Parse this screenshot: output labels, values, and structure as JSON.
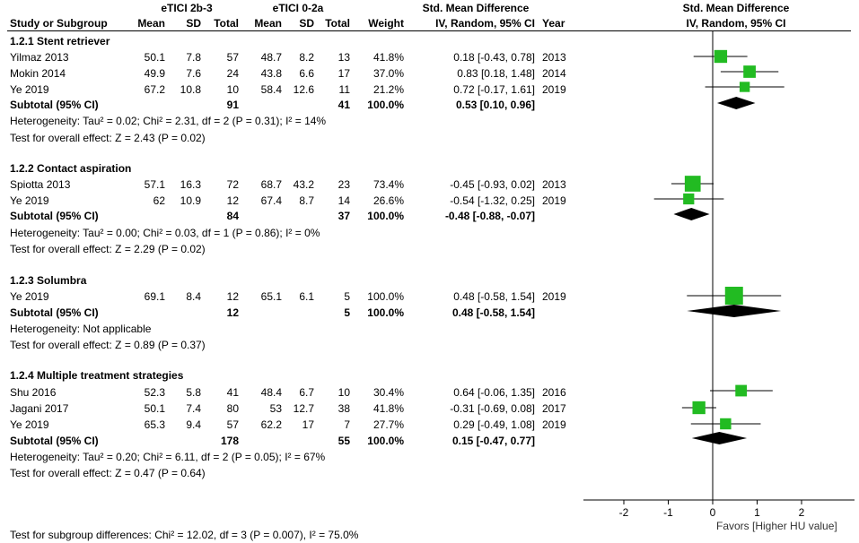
{
  "header": {
    "group1": "eTICI 2b-3",
    "group2": "eTICI 0-2a",
    "effect_title": "Std. Mean Difference",
    "plot_title": "Std. Mean Difference",
    "cols": {
      "study": "Study or Subgroup",
      "mean1": "Mean",
      "sd1": "SD",
      "total1": "Total",
      "mean2": "Mean",
      "sd2": "SD",
      "total2": "Total",
      "weight": "Weight",
      "ci": "IV, Random, 95% CI",
      "year": "Year",
      "plot_ci": "IV, Random, 95% CI"
    }
  },
  "groups": [
    {
      "title": "1.2.1 Stent retriever",
      "studies": [
        {
          "name": "Yilmaz 2013",
          "mean1": "50.1",
          "sd1": "7.8",
          "n1": "57",
          "mean2": "48.7",
          "sd2": "8.2",
          "n2": "13",
          "weight": "41.8%",
          "ci": "0.18 [-0.43, 0.78]",
          "year": "2013"
        },
        {
          "name": "Mokin 2014",
          "mean1": "49.9",
          "sd1": "7.6",
          "n1": "24",
          "mean2": "43.8",
          "sd2": "6.6",
          "n2": "17",
          "weight": "37.0%",
          "ci": "0.83 [0.18, 1.48]",
          "year": "2014"
        },
        {
          "name": "Ye 2019",
          "mean1": "67.2",
          "sd1": "10.8",
          "n1": "10",
          "mean2": "58.4",
          "sd2": "12.6",
          "n2": "11",
          "weight": "21.2%",
          "ci": "0.72 [-0.17, 1.61]",
          "year": "2019"
        }
      ],
      "subtotal": {
        "label": "Subtotal (95% CI)",
        "n1": "91",
        "n2": "41",
        "weight": "100.0%",
        "ci": "0.53 [0.10, 0.96]"
      },
      "heterogeneity": "Heterogeneity: Tau² = 0.02; Chi² = 2.31, df = 2 (P = 0.31); I² = 14%",
      "overall": "Test for overall effect: Z = 2.43 (P = 0.02)"
    },
    {
      "title": "1.2.2 Contact aspiration",
      "studies": [
        {
          "name": "Spiotta 2013",
          "mean1": "57.1",
          "sd1": "16.3",
          "n1": "72",
          "mean2": "68.7",
          "sd2": "43.2",
          "n2": "23",
          "weight": "73.4%",
          "ci": "-0.45 [-0.93, 0.02]",
          "year": "2013"
        },
        {
          "name": "Ye 2019",
          "mean1": "62",
          "sd1": "10.9",
          "n1": "12",
          "mean2": "67.4",
          "sd2": "8.7",
          "n2": "14",
          "weight": "26.6%",
          "ci": "-0.54 [-1.32, 0.25]",
          "year": "2019"
        }
      ],
      "subtotal": {
        "label": "Subtotal (95% CI)",
        "n1": "84",
        "n2": "37",
        "weight": "100.0%",
        "ci": "-0.48 [-0.88, -0.07]"
      },
      "heterogeneity": "Heterogeneity: Tau² = 0.00; Chi² = 0.03, df = 1 (P = 0.86); I² = 0%",
      "overall": "Test for overall effect: Z = 2.29 (P = 0.02)"
    },
    {
      "title": "1.2.3 Solumbra",
      "studies": [
        {
          "name": "Ye 2019",
          "mean1": "69.1",
          "sd1": "8.4",
          "n1": "12",
          "mean2": "65.1",
          "sd2": "6.1",
          "n2": "5",
          "weight": "100.0%",
          "ci": "0.48 [-0.58, 1.54]",
          "year": "2019"
        }
      ],
      "subtotal": {
        "label": "Subtotal (95% CI)",
        "n1": "12",
        "n2": "5",
        "weight": "100.0%",
        "ci": "0.48 [-0.58, 1.54]"
      },
      "heterogeneity": "Heterogeneity: Not applicable",
      "overall": "Test for overall effect: Z = 0.89 (P = 0.37)"
    },
    {
      "title": "1.2.4 Multiple treatment strategies",
      "studies": [
        {
          "name": "Shu 2016",
          "mean1": "52.3",
          "sd1": "5.8",
          "n1": "41",
          "mean2": "48.4",
          "sd2": "6.7",
          "n2": "10",
          "weight": "30.4%",
          "ci": "0.64 [-0.06, 1.35]",
          "year": "2016"
        },
        {
          "name": "Jagani 2017",
          "mean1": "50.1",
          "sd1": "7.4",
          "n1": "80",
          "mean2": "53",
          "sd2": "12.7",
          "n2": "38",
          "weight": "41.8%",
          "ci": "-0.31 [-0.69, 0.08]",
          "year": "2017"
        },
        {
          "name": "Ye 2019",
          "mean1": "65.3",
          "sd1": "9.4",
          "n1": "57",
          "mean2": "62.2",
          "sd2": "17",
          "n2": "7",
          "weight": "27.7%",
          "ci": "0.29 [-0.49, 1.08]",
          "year": "2019"
        }
      ],
      "subtotal": {
        "label": "Subtotal (95% CI)",
        "n1": "178",
        "n2": "55",
        "weight": "100.0%",
        "ci": "0.15 [-0.47, 0.77]"
      },
      "heterogeneity": "Heterogeneity: Tau² = 0.20; Chi² = 6.11, df = 2 (P = 0.05); I² = 67%",
      "overall": "Test for overall effect: Z = 0.47 (P = 0.64)"
    }
  ],
  "footer": "Test for subgroup differences: Chi² = 12.02, df = 3 (P = 0.007), I² = 75.0%",
  "chart_data": {
    "type": "forest",
    "xlim": [
      -2.9,
      3.0
    ],
    "ticks": [
      "-2",
      "-1",
      "0",
      "1",
      "2"
    ],
    "xlabel": "Favors [Higher HU value]",
    "marker_color": "#22bb22",
    "groups": [
      {
        "studies": [
          {
            "est": 0.18,
            "lo": -0.43,
            "hi": 0.78,
            "weight": 41.8
          },
          {
            "est": 0.83,
            "lo": 0.18,
            "hi": 1.48,
            "weight": 37.0
          },
          {
            "est": 0.72,
            "lo": -0.17,
            "hi": 1.61,
            "weight": 21.2
          }
        ],
        "pooled": {
          "est": 0.53,
          "lo": 0.1,
          "hi": 0.96
        }
      },
      {
        "studies": [
          {
            "est": -0.45,
            "lo": -0.93,
            "hi": 0.02,
            "weight": 73.4
          },
          {
            "est": -0.54,
            "lo": -1.32,
            "hi": 0.25,
            "weight": 26.6
          }
        ],
        "pooled": {
          "est": -0.48,
          "lo": -0.88,
          "hi": -0.07
        }
      },
      {
        "studies": [
          {
            "est": 0.48,
            "lo": -0.58,
            "hi": 1.54,
            "weight": 100.0
          }
        ],
        "pooled": {
          "est": 0.48,
          "lo": -0.58,
          "hi": 1.54
        }
      },
      {
        "studies": [
          {
            "est": 0.64,
            "lo": -0.06,
            "hi": 1.35,
            "weight": 30.4
          },
          {
            "est": -0.31,
            "lo": -0.69,
            "hi": 0.08,
            "weight": 41.8
          },
          {
            "est": 0.29,
            "lo": -0.49,
            "hi": 1.08,
            "weight": 27.7
          }
        ],
        "pooled": {
          "est": 0.15,
          "lo": -0.47,
          "hi": 0.77
        }
      }
    ]
  }
}
